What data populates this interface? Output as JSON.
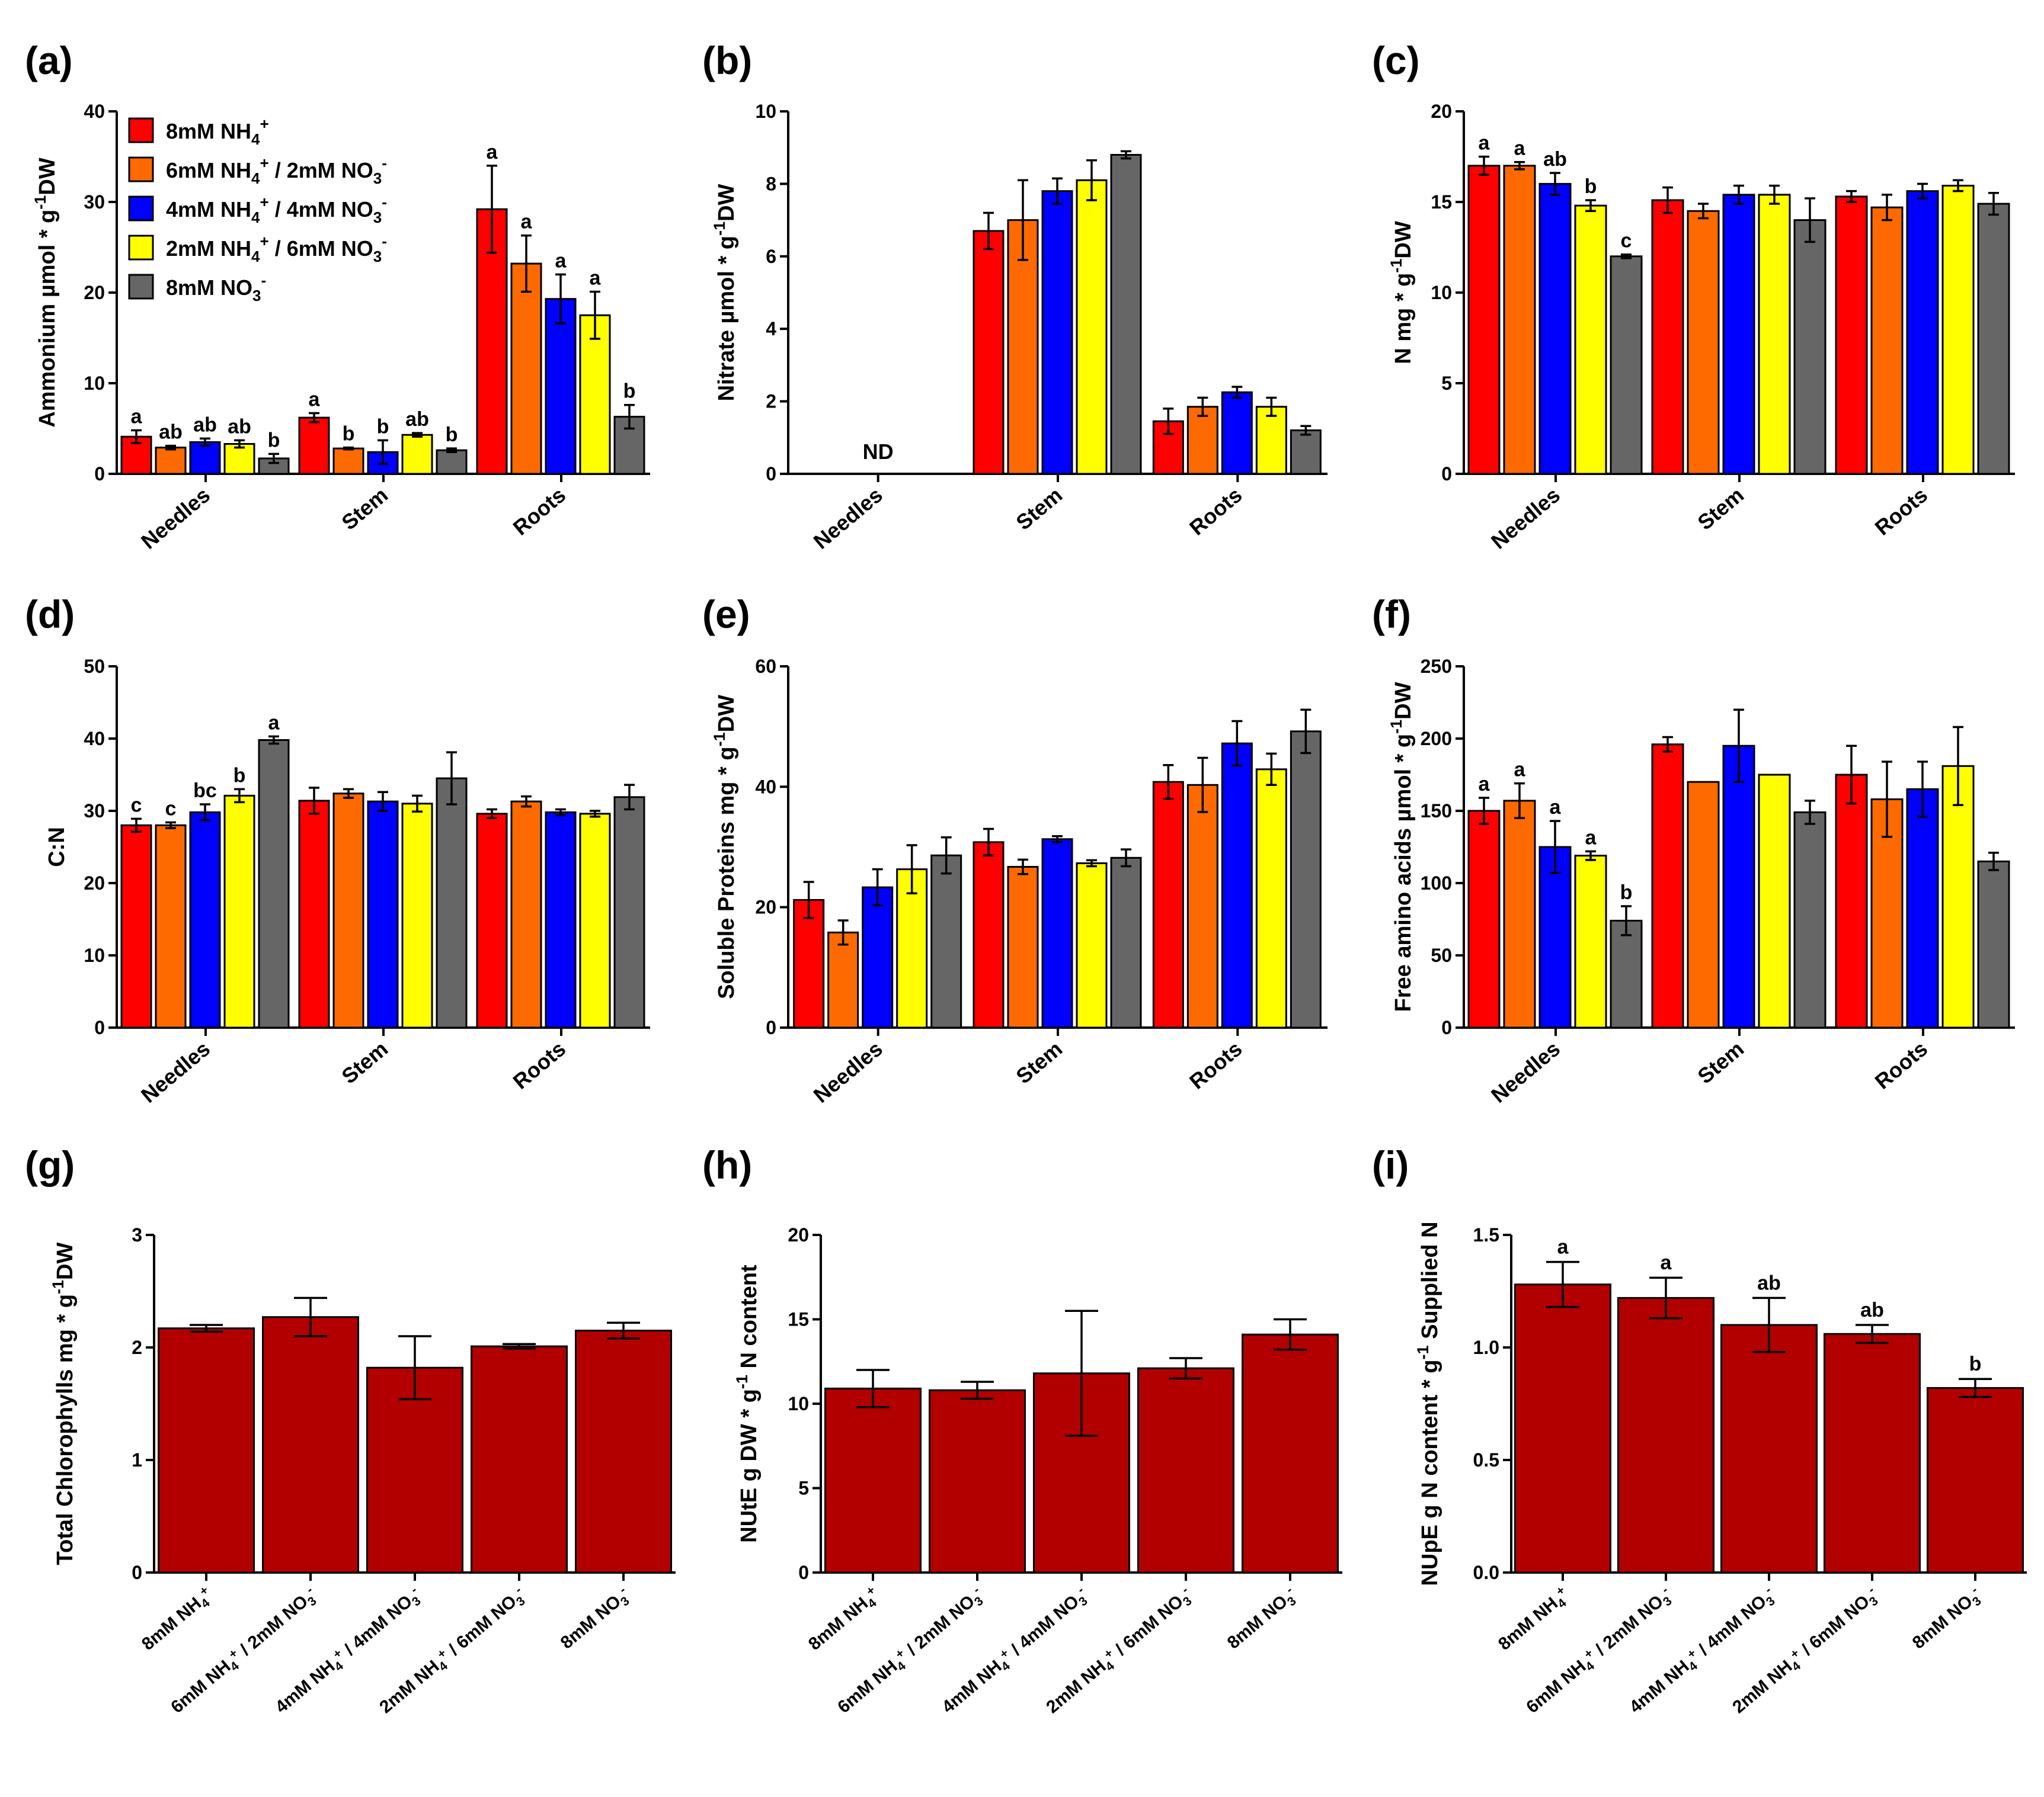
{
  "colors": {
    "series": [
      "#ff0000",
      "#ff6a00",
      "#0000ff",
      "#ffff00",
      "#666666"
    ],
    "single_bar": "#b20000",
    "axis": "#000000"
  },
  "legend": {
    "entries": [
      {
        "text": "8mM NH",
        "sub": "4",
        "sup": "+",
        "text2": "",
        "sub2": "",
        "sup2": ""
      },
      {
        "text": "6mM NH",
        "sub": "4",
        "sup": "+",
        "text2": " / 2mM NO",
        "sub2": "3",
        "sup2": "-"
      },
      {
        "text": "4mM NH",
        "sub": "4",
        "sup": "+",
        "text2": " / 4mM NO",
        "sub2": "3",
        "sup2": "-"
      },
      {
        "text": "2mM NH",
        "sub": "4",
        "sup": "+",
        "text2": " / 6mM NO",
        "sub2": "3",
        "sup2": "-"
      },
      {
        "text": "8mM NO",
        "sub": "3",
        "sup": "-",
        "text2": "",
        "sub2": "",
        "sup2": ""
      }
    ]
  },
  "chart_data": [
    {
      "panel": "(a)",
      "type": "bar",
      "grouped": true,
      "ylabel": "Ammonium µmol * g-1DW",
      "ylim": [
        0,
        40
      ],
      "yticks": [
        "0",
        "10",
        "20",
        "30",
        "40"
      ],
      "ytickvals": [
        0,
        10,
        20,
        30,
        40
      ],
      "categories": [
        "Needles",
        "Stem",
        "Roots"
      ],
      "series_values": [
        [
          4.1,
          2.9,
          3.5,
          3.3,
          1.7
        ],
        [
          6.2,
          2.8,
          2.4,
          4.3,
          2.6
        ],
        [
          29.2,
          23.2,
          19.3,
          17.5,
          6.3
        ]
      ],
      "errors": [
        [
          0.7,
          0.2,
          0.4,
          0.4,
          0.5
        ],
        [
          0.5,
          0.1,
          1.3,
          0.2,
          0.2
        ],
        [
          4.8,
          3.1,
          2.7,
          2.6,
          1.3
        ]
      ],
      "letters": [
        [
          "a",
          "ab",
          "ab",
          "ab",
          "b"
        ],
        [
          "a",
          "b",
          "b",
          "ab",
          "b"
        ],
        [
          "a",
          "a",
          "a",
          "a",
          "b"
        ]
      ],
      "annotation": ""
    },
    {
      "panel": "(b)",
      "type": "bar",
      "grouped": true,
      "ylabel": "Nitrate µmol * g-1DW",
      "ylim": [
        0,
        10
      ],
      "yticks": [
        "0",
        "2",
        "4",
        "6",
        "8",
        "10"
      ],
      "ytickvals": [
        0,
        2,
        4,
        6,
        8,
        10
      ],
      "categories": [
        "Needles",
        "Stem",
        "Roots"
      ],
      "series_values": [
        [
          null,
          null,
          null,
          null,
          null
        ],
        [
          6.7,
          7.0,
          7.8,
          8.1,
          8.8
        ],
        [
          1.45,
          1.85,
          2.25,
          1.85,
          1.2
        ]
      ],
      "errors": [
        [
          0,
          0,
          0,
          0,
          0
        ],
        [
          0.5,
          1.1,
          0.35,
          0.55,
          0.1
        ],
        [
          0.35,
          0.25,
          0.15,
          0.25,
          0.12
        ]
      ],
      "letters": [
        [],
        [],
        []
      ],
      "annotation": "ND"
    },
    {
      "panel": "(c)",
      "type": "bar",
      "grouped": true,
      "ylabel": "N mg * g-1DW",
      "ylim": [
        0,
        20
      ],
      "yticks": [
        "0",
        "5",
        "10",
        "15",
        "20"
      ],
      "ytickvals": [
        0,
        5,
        10,
        15,
        20
      ],
      "categories": [
        "Needles",
        "Stem",
        "Roots"
      ],
      "series_values": [
        [
          17.0,
          17.0,
          16.0,
          14.8,
          12.0
        ],
        [
          15.1,
          14.5,
          15.4,
          15.4,
          14.0
        ],
        [
          15.3,
          14.7,
          15.6,
          15.9,
          14.9
        ]
      ],
      "errors": [
        [
          0.5,
          0.2,
          0.6,
          0.3,
          0.1
        ],
        [
          0.7,
          0.4,
          0.5,
          0.5,
          1.2
        ],
        [
          0.3,
          0.7,
          0.4,
          0.3,
          0.6
        ]
      ],
      "letters": [
        [
          "a",
          "a",
          "ab",
          "b",
          "c"
        ],
        [],
        []
      ],
      "annotation": ""
    },
    {
      "panel": "(d)",
      "type": "bar",
      "grouped": true,
      "ylabel": "C:N",
      "ylim": [
        0,
        50
      ],
      "yticks": [
        "0",
        "10",
        "20",
        "30",
        "40",
        "50"
      ],
      "ytickvals": [
        0,
        10,
        20,
        30,
        40,
        50
      ],
      "categories": [
        "Needles",
        "Stem",
        "Roots"
      ],
      "series_values": [
        [
          28.0,
          28.0,
          29.8,
          32.1,
          39.8
        ],
        [
          31.4,
          32.4,
          31.3,
          31.0,
          34.5
        ],
        [
          29.6,
          31.3,
          29.8,
          29.6,
          31.9
        ]
      ],
      "errors": [
        [
          0.9,
          0.4,
          1.1,
          0.9,
          0.5
        ],
        [
          1.8,
          0.6,
          1.3,
          1.1,
          3.6
        ],
        [
          0.6,
          0.7,
          0.4,
          0.4,
          1.7
        ]
      ],
      "letters": [
        [
          "c",
          "c",
          "bc",
          "b",
          "a"
        ],
        [],
        []
      ],
      "annotation": ""
    },
    {
      "panel": "(e)",
      "type": "bar",
      "grouped": true,
      "ylabel": "Soluble Proteins mg * g-1DW",
      "ylim": [
        0,
        60
      ],
      "yticks": [
        "0",
        "20",
        "40",
        "60"
      ],
      "ytickvals": [
        0,
        20,
        40,
        60
      ],
      "categories": [
        "Needles",
        "Stem",
        "Roots"
      ],
      "series_values": [
        [
          21.2,
          15.8,
          23.3,
          26.3,
          28.6
        ],
        [
          30.8,
          26.7,
          31.3,
          27.3,
          28.2
        ],
        [
          40.8,
          40.3,
          47.2,
          42.9,
          49.2
        ]
      ],
      "errors": [
        [
          3.0,
          2.0,
          3.0,
          4.0,
          3.0
        ],
        [
          2.2,
          1.2,
          0.5,
          0.5,
          1.4
        ],
        [
          2.8,
          4.5,
          3.7,
          2.6,
          3.6
        ]
      ],
      "letters": [
        [],
        [],
        []
      ],
      "annotation": ""
    },
    {
      "panel": "(f)",
      "type": "bar",
      "grouped": true,
      "ylabel": "Free amino acids µmol * g-1DW",
      "ylim": [
        0,
        250
      ],
      "yticks": [
        "0",
        "50",
        "100",
        "150",
        "200",
        "250"
      ],
      "ytickvals": [
        0,
        50,
        100,
        150,
        200,
        250
      ],
      "categories": [
        "Needles",
        "Stem",
        "Roots"
      ],
      "series_values": [
        [
          150,
          157,
          125,
          119,
          74
        ],
        [
          196,
          170,
          195,
          175,
          149
        ],
        [
          175,
          158,
          165,
          181,
          115
        ]
      ],
      "errors": [
        [
          9,
          12,
          18,
          3,
          10
        ],
        [
          5,
          0,
          25,
          0,
          8
        ],
        [
          20,
          26,
          19,
          27,
          6
        ]
      ],
      "letters": [
        [
          "a",
          "a",
          "a",
          "a",
          "b"
        ],
        [],
        []
      ],
      "annotation": ""
    },
    {
      "panel": "(g)",
      "type": "bar",
      "grouped": false,
      "ylabel": "Total Chlorophylls mg * g-1DW",
      "ylim": [
        0,
        3
      ],
      "yticks": [
        "0",
        "1",
        "2",
        "3"
      ],
      "ytickvals": [
        0,
        1,
        2,
        3
      ],
      "categories": [
        "8mM NH4+",
        "6mM NH4+ / 2mM NO3-",
        "4mM NH4+ / 4mM NO3-",
        "2mM NH4+ / 6mM NO3-",
        "8mM NO3-"
      ],
      "values": [
        2.17,
        2.27,
        1.82,
        2.01,
        2.15
      ],
      "errors": [
        0.03,
        0.17,
        0.28,
        0.02,
        0.07
      ],
      "letters": [],
      "annotation": ""
    },
    {
      "panel": "(h)",
      "type": "bar",
      "grouped": false,
      "ylabel": "NUtE g DW * g-1 N content",
      "ylim": [
        0,
        20
      ],
      "yticks": [
        "0",
        "5",
        "10",
        "15",
        "20"
      ],
      "ytickvals": [
        0,
        5,
        10,
        15,
        20
      ],
      "categories": [
        "8mM NH4+",
        "6mM NH4+ / 2mM NO3-",
        "4mM NH4+ / 4mM NO3-",
        "2mM NH4+ / 6mM NO3-",
        "8mM NO3-"
      ],
      "values": [
        10.9,
        10.8,
        11.8,
        12.1,
        14.1
      ],
      "errors": [
        1.1,
        0.5,
        3.7,
        0.6,
        0.9
      ],
      "letters": [],
      "annotation": ""
    },
    {
      "panel": "(i)",
      "type": "bar",
      "grouped": false,
      "ylabel": "NUpE g N content * g-1 Supplied N",
      "ylim": [
        0,
        1.5
      ],
      "yticks": [
        "0.0",
        "0.5",
        "1.0",
        "1.5"
      ],
      "ytickvals": [
        0,
        0.5,
        1.0,
        1.5
      ],
      "categories": [
        "8mM NH4+",
        "6mM NH4+ / 2mM NO3-",
        "4mM NH4+ / 4mM NO3-",
        "2mM NH4+ / 6mM NO3-",
        "8mM NO3-"
      ],
      "values": [
        1.28,
        1.22,
        1.1,
        1.06,
        0.82
      ],
      "errors": [
        0.1,
        0.09,
        0.12,
        0.04,
        0.04
      ],
      "letters": [
        "a",
        "a",
        "ab",
        "ab",
        "b"
      ],
      "annotation": ""
    }
  ]
}
